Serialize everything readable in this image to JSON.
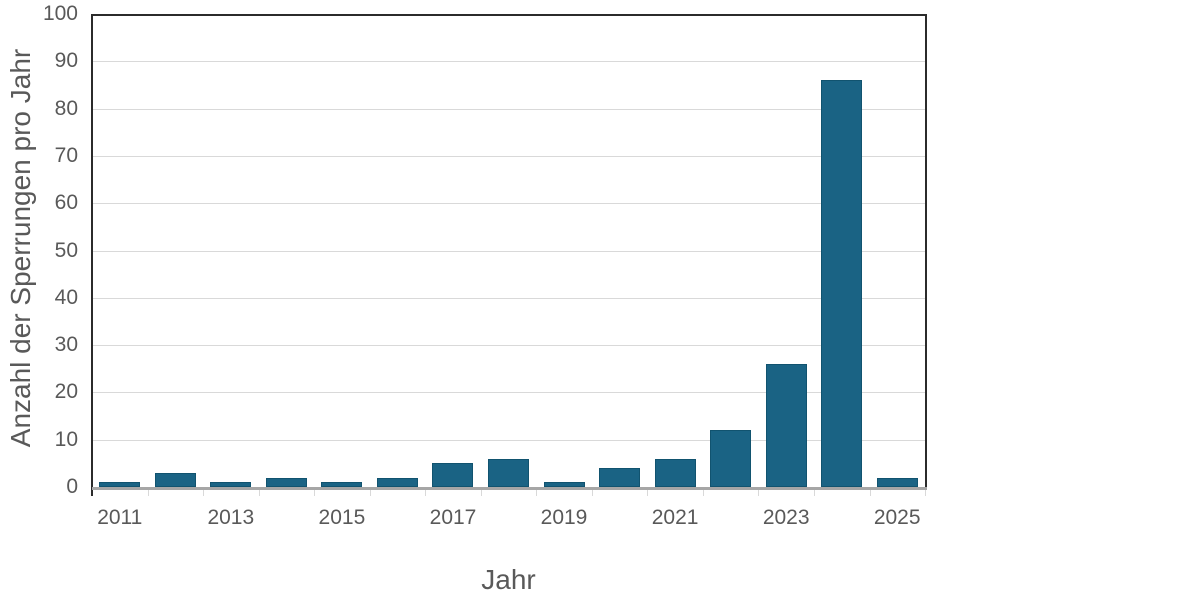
{
  "chart_data": {
    "type": "bar",
    "title": "",
    "xlabel": "Jahr",
    "ylabel": "Anzahl der Sperrungen pro Jahr",
    "categories": [
      "2011",
      "2012",
      "2013",
      "2014",
      "2015",
      "2016",
      "2017",
      "2018",
      "2019",
      "2020",
      "2021",
      "2022",
      "2023",
      "2024",
      "2025"
    ],
    "values": [
      1,
      3,
      1,
      2,
      1,
      2,
      5,
      6,
      1,
      4,
      6,
      12,
      26,
      86,
      2
    ],
    "x_tick_labels": [
      "2011",
      "2013",
      "2015",
      "2017",
      "2019",
      "2021",
      "2023",
      "2025"
    ],
    "x_label_every": 2,
    "ylim": [
      0,
      100
    ],
    "ytick_step": 10,
    "grid": "horizontal-on",
    "legend": "none",
    "colors": {
      "bar_fill": "#1A6384",
      "bar_edge": "#11536F",
      "text": "#595959",
      "gridline": "#D9D9D9",
      "plot_border": "#2B2B2B",
      "baseline": "#A6A6A6",
      "tick_mark": "#D9D9D9",
      "background": "#FFFFFF"
    }
  }
}
